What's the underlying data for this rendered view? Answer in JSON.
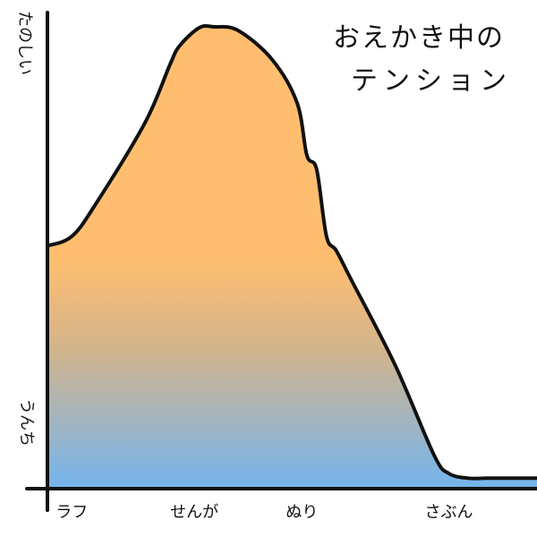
{
  "chart_data": {
    "type": "area",
    "title": "おえかき中の テンション",
    "title_lines": [
      "おえかき中の",
      "テンション"
    ],
    "xlabel": "",
    "ylabel": "",
    "y_tick_labels": {
      "top": "たのしい",
      "bottom": "うんち"
    },
    "x_tick_labels": [
      "ラフ",
      "せんが",
      "ぬり",
      "さぶん"
    ],
    "grid": false,
    "legend": "none",
    "xlim": [
      0,
      1
    ],
    "ylim": [
      0,
      1
    ],
    "series": [
      {
        "x": [
          0.0,
          0.05,
          0.1,
          0.2,
          0.25,
          0.27,
          0.31,
          0.34,
          0.39,
          0.46,
          0.51,
          0.53,
          0.55,
          0.57,
          0.59,
          0.62,
          0.71,
          0.79,
          0.82,
          0.86,
          0.9,
          1.0
        ],
        "values": [
          0.51,
          0.53,
          0.6,
          0.77,
          0.89,
          0.93,
          0.968,
          0.97,
          0.962,
          0.9,
          0.81,
          0.7,
          0.67,
          0.53,
          0.5,
          0.44,
          0.26,
          0.07,
          0.032,
          0.022,
          0.022,
          0.022
        ]
      }
    ],
    "colors": {
      "fill_top": "#ffbe6f",
      "fill_mid": "#d2b48c",
      "fill_bottom": "#74b4ef",
      "line": "#111111",
      "axis": "#111111"
    }
  }
}
